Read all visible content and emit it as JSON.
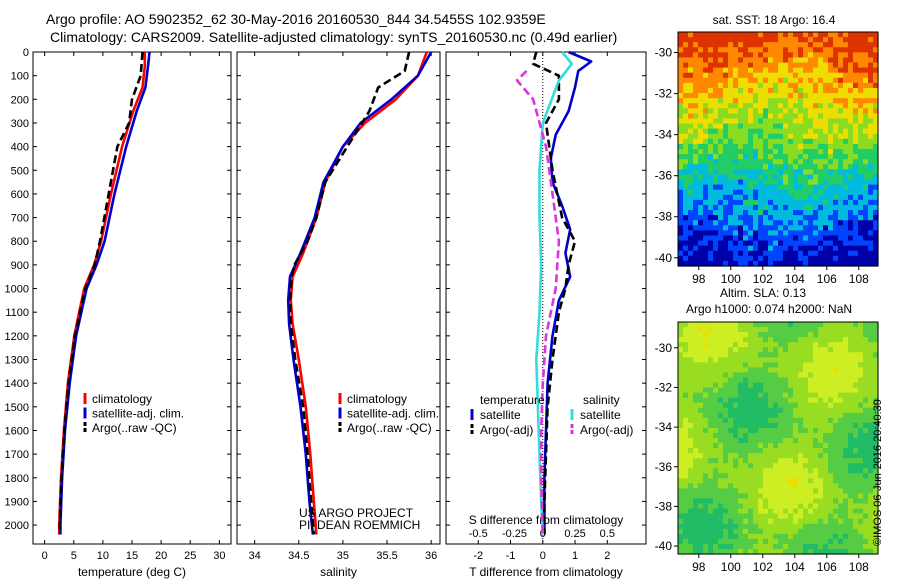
{
  "header": {
    "line1": "Argo profile: AO 5902352_62 30-May-2016 20160530_844 34.5455S 102.9359E",
    "line2": "Climatology: CARS2009. Satellite-adjusted climatology: synTS_20160530.nc (0.49d earlier)"
  },
  "credit": "©IMOS 06-Jun-2016 20:40:39",
  "colors": {
    "red": "#ff0000",
    "blue": "#0000cc",
    "black": "#000000",
    "cyan": "#33dddd",
    "magenta": "#dd33dd"
  },
  "chart_data": [
    {
      "id": "temperature",
      "type": "line",
      "xlabel": "temperature (deg C)",
      "xlim": [
        -2,
        32
      ],
      "xticks": [
        0,
        5,
        10,
        15,
        20,
        25,
        30
      ],
      "xticklabels": [
        "0",
        "5",
        "10",
        "15",
        "20",
        "25",
        "30"
      ],
      "ylim": [
        2080,
        0
      ],
      "yticks": [
        0,
        100,
        200,
        300,
        400,
        500,
        600,
        700,
        800,
        900,
        1000,
        1100,
        1200,
        1300,
        1400,
        1500,
        1600,
        1700,
        1800,
        1900,
        2000
      ],
      "yticklabels": [
        "0",
        "100",
        "200",
        "300",
        "400",
        "500",
        "600",
        "700",
        "800",
        "900",
        "1000",
        "1100",
        "1200",
        "1300",
        "1400",
        "1500",
        "1600",
        "1700",
        "1800",
        "1900",
        "2000"
      ],
      "series": [
        {
          "name": "climatology",
          "color": "red",
          "dash": false,
          "points": [
            [
              17.2,
              0
            ],
            [
              17.2,
              60
            ],
            [
              16.8,
              150
            ],
            [
              15.2,
              250
            ],
            [
              13.3,
              400
            ],
            [
              11.4,
              600
            ],
            [
              9.7,
              800
            ],
            [
              8.5,
              900
            ],
            [
              6.8,
              1000
            ],
            [
              5.1,
              1200
            ],
            [
              4.0,
              1400
            ],
            [
              3.3,
              1600
            ],
            [
              2.8,
              1800
            ],
            [
              2.5,
              2000
            ],
            [
              2.5,
              2040
            ]
          ]
        },
        {
          "name": "satellite-adj. clim.",
          "color": "blue",
          "dash": false,
          "points": [
            [
              18.0,
              0
            ],
            [
              17.8,
              50
            ],
            [
              17.3,
              150
            ],
            [
              15.8,
              250
            ],
            [
              14.0,
              400
            ],
            [
              12.0,
              600
            ],
            [
              10.3,
              800
            ],
            [
              8.9,
              900
            ],
            [
              7.2,
              1000
            ],
            [
              5.4,
              1200
            ],
            [
              4.3,
              1400
            ],
            [
              3.5,
              1600
            ],
            [
              3.0,
              1800
            ],
            [
              2.7,
              2000
            ],
            [
              2.7,
              2040
            ]
          ]
        },
        {
          "name": "Argo(..raw -QC)",
          "color": "black",
          "dash": true,
          "points": [
            [
              16.8,
              0
            ],
            [
              16.5,
              100
            ],
            [
              15.0,
              200
            ],
            [
              14.5,
              300
            ],
            [
              12.5,
              400
            ],
            [
              11.0,
              600
            ],
            [
              9.5,
              800
            ],
            [
              8.6,
              900
            ],
            [
              7.0,
              1000
            ],
            [
              5.2,
              1200
            ],
            [
              4.1,
              1400
            ],
            [
              3.4,
              1600
            ],
            [
              2.9,
              1800
            ],
            [
              2.6,
              2000
            ],
            [
              2.6,
              2040
            ]
          ]
        }
      ],
      "legend": {
        "title": "",
        "entries": [
          {
            "label": "climatology",
            "color": "red",
            "dash": false
          },
          {
            "label": "satellite-adj. clim.",
            "color": "blue",
            "dash": false
          },
          {
            "label": "Argo(..raw -QC)",
            "color": "black",
            "dash": true
          }
        ]
      }
    },
    {
      "id": "salinity",
      "type": "line",
      "xlabel": "salinity",
      "xlim": [
        33.8,
        36.1
      ],
      "xticks": [
        34,
        34.5,
        35,
        35.5,
        36
      ],
      "xticklabels": [
        "34",
        "34.5",
        "35",
        "35.5",
        "36"
      ],
      "ylim": [
        2080,
        0
      ],
      "yticks": [
        0,
        100,
        200,
        300,
        400,
        500,
        600,
        700,
        800,
        900,
        1000,
        1100,
        1200,
        1300,
        1400,
        1500,
        1600,
        1700,
        1800,
        1900,
        2000
      ],
      "yticklabels": [],
      "series": [
        {
          "name": "climatology",
          "color": "red",
          "dash": false,
          "points": [
            [
              35.95,
              0
            ],
            [
              35.85,
              100
            ],
            [
              35.6,
              200
            ],
            [
              35.25,
              300
            ],
            [
              35.0,
              400
            ],
            [
              34.8,
              550
            ],
            [
              34.7,
              700
            ],
            [
              34.55,
              850
            ],
            [
              34.43,
              950
            ],
            [
              34.41,
              1050
            ],
            [
              34.43,
              1150
            ],
            [
              34.5,
              1300
            ],
            [
              34.58,
              1500
            ],
            [
              34.63,
              1700
            ],
            [
              34.67,
              1900
            ],
            [
              34.7,
              2040
            ]
          ]
        },
        {
          "name": "satellite-adj. clim.",
          "color": "blue",
          "dash": false,
          "points": [
            [
              36.0,
              0
            ],
            [
              35.85,
              100
            ],
            [
              35.55,
              200
            ],
            [
              35.2,
              300
            ],
            [
              35.0,
              400
            ],
            [
              34.78,
              550
            ],
            [
              34.68,
              700
            ],
            [
              34.52,
              850
            ],
            [
              34.4,
              950
            ],
            [
              34.38,
              1050
            ],
            [
              34.39,
              1150
            ],
            [
              34.44,
              1300
            ],
            [
              34.52,
              1500
            ],
            [
              34.58,
              1700
            ],
            [
              34.62,
              1900
            ],
            [
              34.66,
              2040
            ]
          ]
        },
        {
          "name": "Argo(..raw -QC)",
          "color": "black",
          "dash": true,
          "points": [
            [
              35.75,
              0
            ],
            [
              35.7,
              80
            ],
            [
              35.4,
              150
            ],
            [
              35.3,
              250
            ],
            [
              35.05,
              400
            ],
            [
              34.8,
              550
            ],
            [
              34.7,
              700
            ],
            [
              34.6,
              800
            ],
            [
              34.45,
              900
            ],
            [
              34.42,
              950
            ],
            [
              34.4,
              1050
            ],
            [
              34.41,
              1150
            ],
            [
              34.46,
              1300
            ],
            [
              34.55,
              1500
            ],
            [
              34.6,
              1700
            ],
            [
              34.64,
              1900
            ],
            [
              34.67,
              2040
            ]
          ]
        }
      ],
      "legend": {
        "title": "",
        "entries": [
          {
            "label": "climatology",
            "color": "red",
            "dash": false
          },
          {
            "label": "satellite-adj. clim.",
            "color": "blue",
            "dash": false
          },
          {
            "label": "Argo(..raw -QC)",
            "color": "black",
            "dash": true
          }
        ]
      },
      "annotation": [
        "US ARGO PROJECT",
        "PI: DEAN ROEMMICH"
      ]
    },
    {
      "id": "difference",
      "type": "line",
      "xlabel": "T difference from climatology",
      "xlabel2": "S difference from climatology",
      "xlim": [
        -3,
        3.2
      ],
      "xticks": [
        -2,
        -1,
        0,
        1,
        2
      ],
      "xticklabels": [
        "-2",
        "-1",
        "0",
        "1",
        "2"
      ],
      "sticks": [
        "-0.5",
        "-0.25",
        "0",
        "0.25",
        "0.5"
      ],
      "ylim": [
        2080,
        0
      ],
      "yticks": [
        0,
        100,
        200,
        300,
        400,
        500,
        600,
        700,
        800,
        900,
        1000,
        1100,
        1200,
        1300,
        1400,
        1500,
        1600,
        1700,
        1800,
        1900,
        2000
      ],
      "yticklabels": [],
      "series": [
        {
          "name": "temperature satellite",
          "color": "blue",
          "dash": false,
          "points": [
            [
              0.8,
              0
            ],
            [
              1.5,
              40
            ],
            [
              1.1,
              80
            ],
            [
              1.0,
              150
            ],
            [
              0.8,
              250
            ],
            [
              0.4,
              350
            ],
            [
              0.25,
              450
            ],
            [
              0.3,
              550
            ],
            [
              0.6,
              650
            ],
            [
              0.85,
              750
            ],
            [
              0.7,
              850
            ],
            [
              0.85,
              950
            ],
            [
              0.5,
              1050
            ],
            [
              0.3,
              1200
            ],
            [
              0.15,
              1400
            ],
            [
              0.1,
              1600
            ],
            [
              0.05,
              1800
            ],
            [
              0.05,
              2040
            ]
          ]
        },
        {
          "name": "temperature Argo(-adj)",
          "color": "black",
          "dash": true,
          "points": [
            [
              -0.2,
              0
            ],
            [
              -0.3,
              50
            ],
            [
              0.5,
              100
            ],
            [
              0.5,
              200
            ],
            [
              0.1,
              300
            ],
            [
              0.3,
              500
            ],
            [
              0.6,
              700
            ],
            [
              1.0,
              800
            ],
            [
              0.8,
              900
            ],
            [
              0.7,
              1000
            ],
            [
              0.5,
              1100
            ],
            [
              0.3,
              1300
            ],
            [
              0.15,
              1500
            ],
            [
              0.1,
              1700
            ],
            [
              0.05,
              1900
            ],
            [
              0.05,
              2040
            ]
          ]
        },
        {
          "name": "salinity satellite",
          "color": "cyan",
          "dash": false,
          "points": [
            [
              0.6,
              0
            ],
            [
              0.9,
              50
            ],
            [
              0.5,
              120
            ],
            [
              0.0,
              300
            ],
            [
              -0.1,
              500
            ],
            [
              -0.1,
              700
            ],
            [
              -0.05,
              900
            ],
            [
              -0.1,
              1100
            ],
            [
              -0.2,
              1300
            ],
            [
              -0.15,
              1500
            ],
            [
              -0.1,
              1700
            ],
            [
              -0.05,
              1900
            ],
            [
              0.0,
              2040
            ]
          ]
        },
        {
          "name": "salinity Argo(-adj)",
          "color": "magenta",
          "dash": true,
          "points": [
            [
              -0.5,
              80
            ],
            [
              -0.8,
              120
            ],
            [
              -0.3,
              200
            ],
            [
              0.1,
              400
            ],
            [
              0.3,
              600
            ],
            [
              0.5,
              800
            ],
            [
              0.4,
              1000
            ],
            [
              0.1,
              1200
            ],
            [
              0.0,
              1400
            ],
            [
              -0.05,
              1600
            ],
            [
              -0.05,
              1800
            ],
            [
              0.0,
              2040
            ]
          ]
        }
      ],
      "legend": {
        "title": "temperature",
        "title2": "salinity",
        "entries": [
          {
            "label": "satellite",
            "color": "blue",
            "dash": false
          },
          {
            "label": "Argo(-adj)",
            "color": "black",
            "dash": true
          },
          {
            "label": "satellite",
            "color": "cyan",
            "dash": false
          },
          {
            "label": "Argo(-adj)",
            "color": "magenta",
            "dash": true
          }
        ]
      }
    },
    {
      "id": "sst-map",
      "type": "heatmap",
      "title": "sat. SST: 18 Argo: 16.4",
      "xlim": [
        96.7,
        109.2
      ],
      "ylim": [
        -40.4,
        -29
      ],
      "xticklabels": [
        "98",
        "100",
        "102",
        "104",
        "106",
        "108"
      ],
      "yticklabels": [
        "-30",
        "-32",
        "-34",
        "-36",
        "-38",
        "-40"
      ],
      "palette": [
        "#0000a8",
        "#0044ff",
        "#00bbdd",
        "#22cc66",
        "#88dd22",
        "#eedd00",
        "#ff8800",
        "#dd3300"
      ]
    },
    {
      "id": "sla-map",
      "type": "heatmap",
      "title": "Altim. SLA: 0.13",
      "title2": "Argo h1000: 0.074 h2000: NaN",
      "xlim": [
        96.7,
        109.2
      ],
      "ylim": [
        -40.4,
        -28.7
      ],
      "xticklabels": [
        "98",
        "100",
        "102",
        "104",
        "106",
        "108"
      ],
      "yticklabels": [
        "-30",
        "-32",
        "-34",
        "-36",
        "-38",
        "-40"
      ],
      "palette": [
        "#22bb66",
        "#55cc44",
        "#99dd22",
        "#ccee22",
        "#eedd00",
        "#f4b400"
      ]
    }
  ]
}
